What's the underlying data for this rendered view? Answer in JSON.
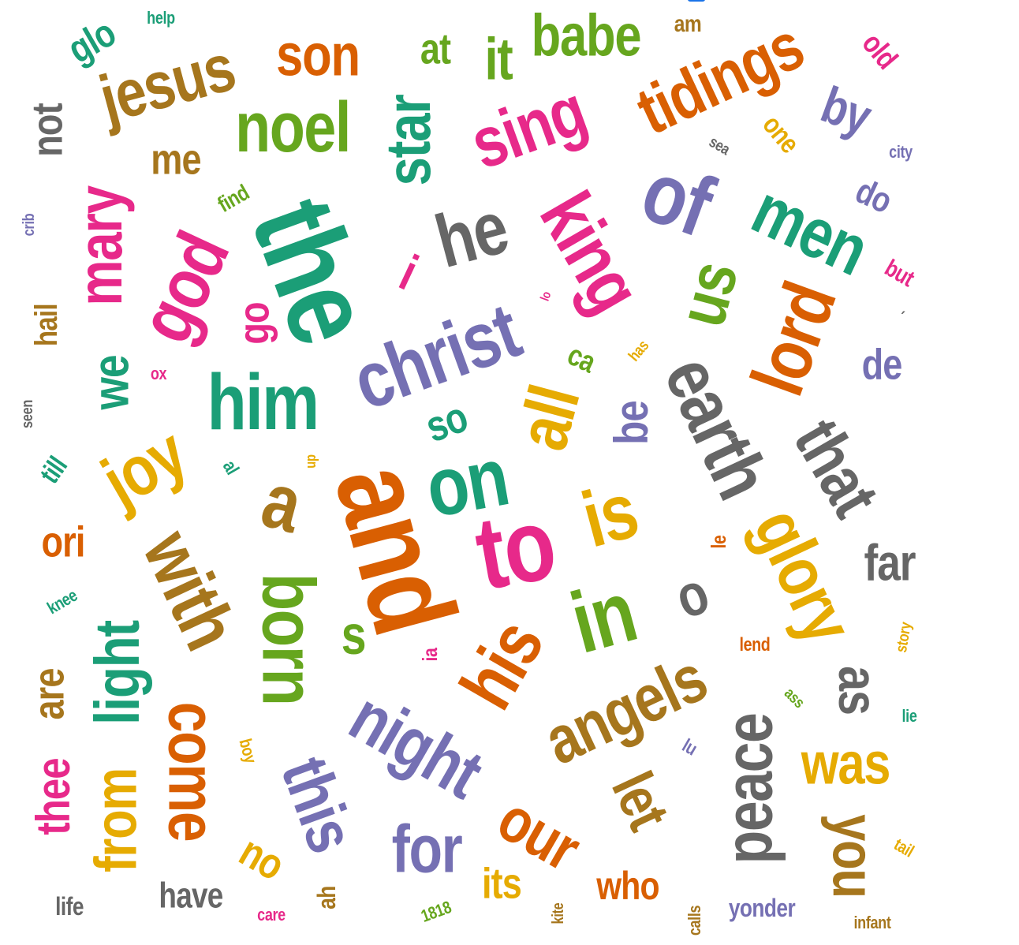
{
  "colors": {
    "green": "#1b9e77",
    "orange": "#d95f02",
    "purple": "#7570b3",
    "pink": "#e7298a",
    "lime": "#66a61e",
    "gold": "#e6ab02",
    "brown": "#a6761d",
    "gray": "#666666"
  },
  "words": [
    {
      "text": "the",
      "color": "green",
      "size": 150,
      "rotate": 70
    },
    {
      "text": "and",
      "color": "orange",
      "size": 150,
      "rotate": 75
    },
    {
      "text": "christ",
      "color": "purple",
      "size": 100,
      "rotate": -20
    },
    {
      "text": "to",
      "color": "pink",
      "size": 130,
      "rotate": -10
    },
    {
      "text": "in",
      "color": "lime",
      "size": 110,
      "rotate": -15
    },
    {
      "text": "is",
      "color": "gold",
      "size": 100,
      "rotate": -15
    },
    {
      "text": "on",
      "color": "green",
      "size": 105,
      "rotate": -10
    },
    {
      "text": "earth",
      "color": "gray",
      "size": 95,
      "rotate": 65
    },
    {
      "text": "of",
      "color": "purple",
      "size": 110,
      "rotate": 20
    },
    {
      "text": "he",
      "color": "gray",
      "size": 95,
      "rotate": -15
    },
    {
      "text": "king",
      "color": "pink",
      "size": 95,
      "rotate": 60
    },
    {
      "text": "him",
      "color": "green",
      "size": 100,
      "rotate": 0
    },
    {
      "text": "god",
      "color": "pink",
      "size": 95,
      "rotate": -65
    },
    {
      "text": "noel",
      "color": "lime",
      "size": 90,
      "rotate": 0
    },
    {
      "text": "jesus",
      "color": "brown",
      "size": 85,
      "rotate": -15
    },
    {
      "text": "men",
      "color": "green",
      "size": 90,
      "rotate": 25
    },
    {
      "text": "lord",
      "color": "orange",
      "size": 95,
      "rotate": -70
    },
    {
      "text": "us",
      "color": "lime",
      "size": 85,
      "rotate": -75
    },
    {
      "text": "glory",
      "color": "gold",
      "size": 90,
      "rotate": 65
    },
    {
      "text": "that",
      "color": "gray",
      "size": 85,
      "rotate": 60
    },
    {
      "text": "all",
      "color": "gold",
      "size": 90,
      "rotate": -75
    },
    {
      "text": "his",
      "color": "orange",
      "size": 95,
      "rotate": -60
    },
    {
      "text": "night",
      "color": "purple",
      "size": 90,
      "rotate": 30
    },
    {
      "text": "angels",
      "color": "brown",
      "size": 85,
      "rotate": -25
    },
    {
      "text": "a",
      "color": "brown",
      "size": 100,
      "rotate": 15
    },
    {
      "text": "with",
      "color": "brown",
      "size": 95,
      "rotate": 65
    },
    {
      "text": "born",
      "color": "lime",
      "size": 95,
      "rotate": 90
    },
    {
      "text": "tidings",
      "color": "orange",
      "size": 85,
      "rotate": -25
    },
    {
      "text": "sing",
      "color": "pink",
      "size": 90,
      "rotate": -20
    },
    {
      "text": "star",
      "color": "green",
      "size": 80,
      "rotate": -90
    },
    {
      "text": "joy",
      "color": "gold",
      "size": 90,
      "rotate": -30
    },
    {
      "text": "mary",
      "color": "pink",
      "size": 80,
      "rotate": -90
    },
    {
      "text": "son",
      "color": "orange",
      "size": 75,
      "rotate": 0
    },
    {
      "text": "it",
      "color": "lime",
      "size": 75,
      "rotate": 0
    },
    {
      "text": "babe",
      "color": "lime",
      "size": 75,
      "rotate": 0
    },
    {
      "text": "peace",
      "color": "gray",
      "size": 85,
      "rotate": -90
    },
    {
      "text": "come",
      "color": "orange",
      "size": 85,
      "rotate": 90
    },
    {
      "text": "this",
      "color": "purple",
      "size": 85,
      "rotate": 70
    },
    {
      "text": "for",
      "color": "purple",
      "size": 85,
      "rotate": 0
    },
    {
      "text": "our",
      "color": "orange",
      "size": 80,
      "rotate": 30
    },
    {
      "text": "let",
      "color": "brown",
      "size": 75,
      "rotate": 65
    },
    {
      "text": "was",
      "color": "gold",
      "size": 75,
      "rotate": 0
    },
    {
      "text": "you",
      "color": "brown",
      "size": 75,
      "rotate": 90
    },
    {
      "text": "light",
      "color": "green",
      "size": 80,
      "rotate": -90
    },
    {
      "text": "from",
      "color": "gold",
      "size": 75,
      "rotate": -90
    },
    {
      "text": "far",
      "color": "gray",
      "size": 65,
      "rotate": 0
    },
    {
      "text": "as",
      "color": "gray",
      "size": 70,
      "rotate": 90
    },
    {
      "text": "o",
      "color": "gray",
      "size": 75,
      "rotate": -20
    },
    {
      "text": "be",
      "color": "purple",
      "size": 60,
      "rotate": -90
    },
    {
      "text": "by",
      "color": "purple",
      "size": 65,
      "rotate": 20
    },
    {
      "text": "we",
      "color": "green",
      "size": 65,
      "rotate": -90
    },
    {
      "text": "me",
      "color": "brown",
      "size": 55,
      "rotate": 0
    },
    {
      "text": "i",
      "color": "pink",
      "size": 65,
      "rotate": 25
    },
    {
      "text": "go",
      "color": "pink",
      "size": 55,
      "rotate": -90
    },
    {
      "text": "at",
      "color": "lime",
      "size": 55,
      "rotate": 0
    },
    {
      "text": "de",
      "color": "purple",
      "size": 55,
      "rotate": 0
    },
    {
      "text": "do",
      "color": "purple",
      "size": 45,
      "rotate": 25
    },
    {
      "text": "so",
      "color": "green",
      "size": 55,
      "rotate": -20
    },
    {
      "text": "s",
      "color": "lime",
      "size": 70,
      "rotate": 0
    },
    {
      "text": "ori",
      "color": "orange",
      "size": 55,
      "rotate": 0
    },
    {
      "text": "are",
      "color": "brown",
      "size": 55,
      "rotate": -90
    },
    {
      "text": "thee",
      "color": "pink",
      "size": 60,
      "rotate": -90
    },
    {
      "text": "not",
      "color": "gray",
      "size": 55,
      "rotate": -90
    },
    {
      "text": "hail",
      "color": "brown",
      "size": 40,
      "rotate": -90
    },
    {
      "text": "no",
      "color": "gold",
      "size": 55,
      "rotate": 30
    },
    {
      "text": "its",
      "color": "gold",
      "size": 55,
      "rotate": 0
    },
    {
      "text": "who",
      "color": "orange",
      "size": 50,
      "rotate": 0
    },
    {
      "text": "have",
      "color": "gray",
      "size": 45,
      "rotate": 0
    },
    {
      "text": "glo",
      "color": "green",
      "size": 50,
      "rotate": -30
    },
    {
      "text": "one",
      "color": "gold",
      "size": 35,
      "rotate": 50
    },
    {
      "text": "old",
      "color": "pink",
      "size": 38,
      "rotate": 50
    },
    {
      "text": "but",
      "color": "pink",
      "size": 30,
      "rotate": 30
    },
    {
      "text": "ca",
      "color": "lime",
      "size": 38,
      "rotate": 25
    },
    {
      "text": "till",
      "color": "green",
      "size": 35,
      "rotate": -55
    },
    {
      "text": "yonder",
      "color": "purple",
      "size": 32,
      "rotate": 0
    },
    {
      "text": "life",
      "color": "gray",
      "size": 32,
      "rotate": 0
    },
    {
      "text": "find",
      "color": "lime",
      "size": 28,
      "rotate": -30
    },
    {
      "text": "am",
      "color": "brown",
      "size": 30,
      "rotate": 0
    },
    {
      "text": "ah",
      "color": "brown",
      "size": 32,
      "rotate": -90
    },
    {
      "text": "ia",
      "color": "pink",
      "size": 26,
      "rotate": -90
    },
    {
      "text": "ox",
      "color": "pink",
      "size": 22,
      "rotate": 0
    },
    {
      "text": "help",
      "color": "green",
      "size": 22,
      "rotate": 0
    },
    {
      "text": "city",
      "color": "purple",
      "size": 22,
      "rotate": 0
    },
    {
      "text": "sea",
      "color": "gray",
      "size": 20,
      "rotate": 30
    },
    {
      "text": "crib",
      "color": "purple",
      "size": 20,
      "rotate": -90
    },
    {
      "text": "seen",
      "color": "gray",
      "size": 20,
      "rotate": -90
    },
    {
      "text": "knee",
      "color": "green",
      "size": 22,
      "rotate": -30
    },
    {
      "text": "boy",
      "color": "gold",
      "size": 22,
      "rotate": 75
    },
    {
      "text": "up",
      "color": "gold",
      "size": 18,
      "rotate": -90
    },
    {
      "text": "al",
      "color": "green",
      "size": 24,
      "rotate": 60
    },
    {
      "text": "lo",
      "color": "pink",
      "size": 16,
      "rotate": -70
    },
    {
      "text": "has",
      "color": "gold",
      "size": 20,
      "rotate": -50
    },
    {
      "text": "le",
      "color": "orange",
      "size": 26,
      "rotate": -90
    },
    {
      "text": "lend",
      "color": "orange",
      "size": 24,
      "rotate": 0
    },
    {
      "text": "story",
      "color": "gold",
      "size": 20,
      "rotate": -80
    },
    {
      "text": "ass",
      "color": "lime",
      "size": 20,
      "rotate": 45
    },
    {
      "text": "lie",
      "color": "green",
      "size": 22,
      "rotate": 0
    },
    {
      "text": "lu",
      "color": "purple",
      "size": 24,
      "rotate": 30
    },
    {
      "text": "tail",
      "color": "gold",
      "size": 22,
      "rotate": 30
    },
    {
      "text": "infant",
      "color": "brown",
      "size": 22,
      "rotate": 0
    },
    {
      "text": "calls",
      "color": "brown",
      "size": 22,
      "rotate": -90
    },
    {
      "text": "kite",
      "color": "brown",
      "size": 20,
      "rotate": -90
    },
    {
      "text": "care",
      "color": "pink",
      "size": 22,
      "rotate": 0
    },
    {
      "text": "1818",
      "color": "lime",
      "size": 22,
      "rotate": -20
    },
    {
      "text": "´",
      "color": "gray",
      "size": 22,
      "rotate": 0
    }
  ]
}
